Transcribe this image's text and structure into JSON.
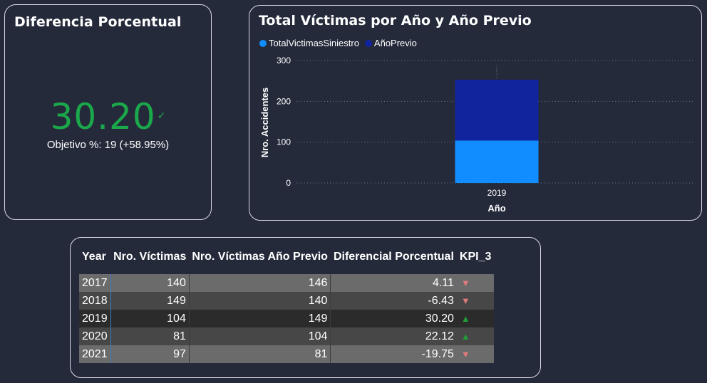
{
  "kpi_card": {
    "title": "Diferencia Porcentual",
    "value": "30.20",
    "goal_text": "Objetivo %: 19 (+58.95%)",
    "value_color": "#1aa84a"
  },
  "chart_card": {
    "title": "Total Víctimas por Año y Año Previo",
    "legend": [
      {
        "label": "TotalVictimasSiniestro",
        "color": "#118dff"
      },
      {
        "label": "AñoPrevio",
        "color": "#12239e"
      }
    ],
    "y_axis_label": "Nro. Accidentes",
    "x_axis_label": "Año",
    "y_ticks": [
      "0",
      "100",
      "200",
      "300"
    ],
    "chart_data": {
      "type": "bar",
      "stacked": true,
      "categories": [
        "2019"
      ],
      "series": [
        {
          "name": "TotalVictimasSiniestro",
          "values": [
            104
          ],
          "color": "#118dff"
        },
        {
          "name": "AñoPrevio",
          "values": [
            149
          ],
          "color": "#12239e"
        }
      ],
      "xlabel": "Año",
      "ylabel": "Nro. Accidentes",
      "ylim": [
        0,
        300
      ],
      "grid": true,
      "legend_position": "top-left"
    }
  },
  "table": {
    "headers": [
      "Year",
      "Nro. Víctimas",
      "Nro. Víctimas Año Previo",
      "Diferencial Porcentual",
      "KPI_3"
    ],
    "rows": [
      {
        "year": "2017",
        "victimas": "140",
        "previo": "146",
        "diferencial": "4.11",
        "kpi": "down"
      },
      {
        "year": "2018",
        "victimas": "149",
        "previo": "140",
        "diferencial": "-6.43",
        "kpi": "down"
      },
      {
        "year": "2019",
        "victimas": "104",
        "previo": "149",
        "diferencial": "30.20",
        "kpi": "up"
      },
      {
        "year": "2020",
        "victimas": "81",
        "previo": "104",
        "diferencial": "22.12",
        "kpi": "up"
      },
      {
        "year": "2021",
        "victimas": "97",
        "previo": "81",
        "diferencial": "-19.75",
        "kpi": "down"
      }
    ],
    "kpi_colors": {
      "up": "#1f9e3a",
      "down": "#e07a7a"
    }
  }
}
